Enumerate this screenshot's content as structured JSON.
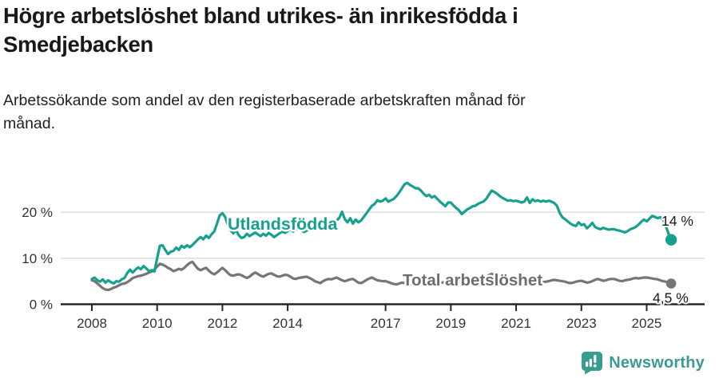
{
  "header": {
    "title": "Högre arbetslöshet bland utrikes- än inrikesfödda i Smedjebacken",
    "subtitle": "Arbetssökande som andel av den registerbaserade arbetskraften månad för månad."
  },
  "chart_data": {
    "type": "line",
    "title": "Högre arbetslöshet bland utrikes- än inrikesfödda i Smedjebacken",
    "subtitle": "Arbetssökande som andel av den registerbaserade arbetskraften månad för månad.",
    "unit": "%",
    "grid": "horizontal",
    "x_start_year": 2008,
    "x_interval": "monthly",
    "x_end": "2025-10",
    "x_ticks": [
      2008,
      2010,
      2012,
      2014,
      2017,
      2019,
      2021,
      2023,
      2025
    ],
    "y_ticks": [
      {
        "value": 0,
        "label": "0 %"
      },
      {
        "value": 10,
        "label": "10 %"
      },
      {
        "value": 20,
        "label": "20 %"
      }
    ],
    "ylim": [
      0,
      28
    ],
    "axis_color": "#262626",
    "grid_color": "#d8d8d8",
    "tick_label_color": "#333333",
    "end_label_color": "#1a1a1a",
    "series": [
      {
        "name": "Total arbetslöshet",
        "color": "#767676",
        "label_color": "#6d6d6d",
        "end_label": "4,5 %",
        "end_value": 4.5,
        "values": [
          5.2,
          5.0,
          4.5,
          4.0,
          3.5,
          3.2,
          3.1,
          3.3,
          3.6,
          3.8,
          4.1,
          4.4,
          4.5,
          4.8,
          5.2,
          5.7,
          5.9,
          6.1,
          6.2,
          6.4,
          6.6,
          6.9,
          7.1,
          7.5,
          8.2,
          8.8,
          8.6,
          8.3,
          7.9,
          7.6,
          7.2,
          7.4,
          7.7,
          7.5,
          7.9,
          8.5,
          9.0,
          9.2,
          8.4,
          7.7,
          7.4,
          7.7,
          7.9,
          7.3,
          6.8,
          6.5,
          6.9,
          7.4,
          7.9,
          7.4,
          6.8,
          6.3,
          6.2,
          6.4,
          6.5,
          6.3,
          6.0,
          5.7,
          6.0,
          6.5,
          6.9,
          6.6,
          6.2,
          6.0,
          6.3,
          6.6,
          6.7,
          6.4,
          6.1,
          6.0,
          6.2,
          6.4,
          6.3,
          6.0,
          5.6,
          5.5,
          5.7,
          5.8,
          5.9,
          6.0,
          5.7,
          5.4,
          5.0,
          4.8,
          4.6,
          5.0,
          5.3,
          5.5,
          5.4,
          5.6,
          5.8,
          5.5,
          5.2,
          5.0,
          5.2,
          5.4,
          5.5,
          5.1,
          4.7,
          4.6,
          4.9,
          5.3,
          5.6,
          5.8,
          5.5,
          5.2,
          5.1,
          5.0,
          5.0,
          4.8,
          4.6,
          4.4,
          4.3,
          4.5,
          4.7,
          4.6,
          4.4,
          4.3,
          4.4,
          4.5,
          4.6,
          4.8,
          5.0,
          4.9,
          4.7,
          4.9,
          5.1,
          5.0,
          4.8,
          4.7,
          4.9,
          5.1,
          5.0,
          4.8,
          4.7,
          4.9,
          5.1,
          5.2,
          5.0,
          4.9,
          5.1,
          5.3,
          5.2,
          5.4,
          5.6,
          5.9,
          6.3,
          6.6,
          6.4,
          6.2,
          6.0,
          5.8,
          5.7,
          5.5,
          5.4,
          5.3,
          5.4,
          5.3,
          5.2,
          5.1,
          5.0,
          4.9,
          5.0,
          5.1,
          5.0,
          4.9,
          4.8,
          4.9,
          5.0,
          5.2,
          5.3,
          5.2,
          5.1,
          5.0,
          4.9,
          4.7,
          4.6,
          4.7,
          4.9,
          5.0,
          5.1,
          4.9,
          4.7,
          4.8,
          5.0,
          5.3,
          5.5,
          5.3,
          5.1,
          5.2,
          5.4,
          5.5,
          5.5,
          5.3,
          5.1,
          5.0,
          5.2,
          5.3,
          5.4,
          5.6,
          5.7,
          5.6,
          5.7,
          5.8,
          5.8,
          5.7,
          5.6,
          5.5,
          5.4,
          5.2,
          5.0,
          4.9,
          4.7,
          4.5
        ]
      },
      {
        "name": "Utlandsfödda",
        "color": "#17A08E",
        "label_color": "#17A08E",
        "end_label": "14 %",
        "end_value": 14,
        "values": [
          5.5,
          5.8,
          5.2,
          4.9,
          5.4,
          4.7,
          5.2,
          4.8,
          4.5,
          5.0,
          4.9,
          5.4,
          5.7,
          6.8,
          7.5,
          6.9,
          7.5,
          8.0,
          7.6,
          8.3,
          7.8,
          7.2,
          7.4,
          7.1,
          10.0,
          12.7,
          12.8,
          11.8,
          10.9,
          11.4,
          11.6,
          12.3,
          11.8,
          12.7,
          12.3,
          12.8,
          12.4,
          12.9,
          13.5,
          14.1,
          14.6,
          14.1,
          14.9,
          14.4,
          15.2,
          15.8,
          17.5,
          19.3,
          19.8,
          19.0,
          17.2,
          16.1,
          15.4,
          16.1,
          15.0,
          14.4,
          14.6,
          15.3,
          14.8,
          15.2,
          15.6,
          15.2,
          14.8,
          15.3,
          14.9,
          15.5,
          15.1,
          14.6,
          15.0,
          15.4,
          15.8,
          15.5,
          15.9,
          16.3,
          15.8,
          16.2,
          16.7,
          16.1,
          15.7,
          16.0,
          16.4,
          16.8,
          17.2,
          17.6,
          16.9,
          16.4,
          16.9,
          17.4,
          17.0,
          17.6,
          18.2,
          18.8,
          20.1,
          18.5,
          17.8,
          18.7,
          17.5,
          18.4,
          17.8,
          18.2,
          19.0,
          19.8,
          20.6,
          21.4,
          21.8,
          22.6,
          22.3,
          22.5,
          23.0,
          22.3,
          22.6,
          22.9,
          23.5,
          24.3,
          25.2,
          26.1,
          26.4,
          25.9,
          25.6,
          25.2,
          25.2,
          24.7,
          24.0,
          23.5,
          23.8,
          23.2,
          23.5,
          22.9,
          22.3,
          21.8,
          21.3,
          22.1,
          22.1,
          21.4,
          20.9,
          20.4,
          19.6,
          20.1,
          20.6,
          20.9,
          21.3,
          21.4,
          21.8,
          22.1,
          22.3,
          22.9,
          23.8,
          24.7,
          24.4,
          24.0,
          23.5,
          23.1,
          22.8,
          22.5,
          22.6,
          22.4,
          22.5,
          22.3,
          22.1,
          22.3,
          23.2,
          22.0,
          22.8,
          22.4,
          22.6,
          22.3,
          22.5,
          22.3,
          22.5,
          22.3,
          22.0,
          21.4,
          19.9,
          18.9,
          18.5,
          18.0,
          17.5,
          17.2,
          17.0,
          17.8,
          17.2,
          17.4,
          16.5,
          17.0,
          17.7,
          16.8,
          16.5,
          16.3,
          16.6,
          16.4,
          16.2,
          16.3,
          16.3,
          16.1,
          16.0,
          15.8,
          15.6,
          15.9,
          16.3,
          16.5,
          16.8,
          17.3,
          17.9,
          18.4,
          18.0,
          18.6,
          19.2,
          19.0,
          18.7,
          18.9,
          18.4,
          17.0,
          15.4,
          14.0
        ]
      }
    ]
  },
  "footer": {
    "brand": "Newsworthy",
    "brand_color": "#399B92",
    "logo_icon": "chart-speech-bubble-icon"
  }
}
